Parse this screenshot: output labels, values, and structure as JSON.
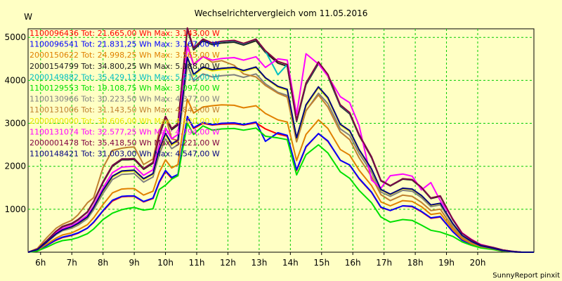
{
  "chart_data": {
    "type": "line",
    "title": "Wechselrichtervergleich vom 11.05.2016",
    "ylabel": "W",
    "xlabel": "",
    "footer": "SunnyReport pinxit",
    "x_range_hours": [
      5.6,
      21.8
    ],
    "ylim": [
      0,
      5200
    ],
    "x_ticks": [
      {
        "x": 6,
        "label": "6h"
      },
      {
        "x": 7,
        "label": "7h"
      },
      {
        "x": 8,
        "label": "8h"
      },
      {
        "x": 9,
        "label": "9h"
      },
      {
        "x": 10,
        "label": "10h"
      },
      {
        "x": 11,
        "label": "11h"
      },
      {
        "x": 12,
        "label": "12h"
      },
      {
        "x": 13,
        "label": "13h"
      },
      {
        "x": 14,
        "label": "14h"
      },
      {
        "x": 15,
        "label": "15h"
      },
      {
        "x": 16,
        "label": "16h"
      },
      {
        "x": 17,
        "label": "17h"
      },
      {
        "x": 18,
        "label": "18h"
      },
      {
        "x": 19,
        "label": "19h"
      },
      {
        "x": 20,
        "label": "20h"
      }
    ],
    "y_ticks": [
      1000,
      2000,
      3000,
      4000,
      5000
    ],
    "grid": true,
    "legend_position": "top-left",
    "x": [
      5.6,
      5.9,
      6.2,
      6.5,
      6.7,
      7.0,
      7.2,
      7.5,
      7.7,
      8.0,
      8.3,
      8.6,
      8.8,
      9.0,
      9.3,
      9.6,
      9.8,
      10.0,
      10.2,
      10.4,
      10.7,
      10.9,
      11.2,
      11.5,
      11.8,
      12.2,
      12.5,
      12.9,
      13.2,
      13.6,
      13.9,
      14.2,
      14.5,
      14.9,
      15.2,
      15.6,
      15.9,
      16.2,
      16.6,
      16.9,
      17.2,
      17.6,
      17.9,
      18.2,
      18.5,
      18.8,
      19.2,
      19.5,
      19.8,
      20.1,
      20.5,
      20.8,
      21.1,
      21.4,
      21.8
    ],
    "series": [
      {
        "name": "1100096436",
        "legend": "1100096436 Tot: 21.665,00 Wh Max: 3.143,00 W",
        "color": "#ff0000",
        "values": [
          0,
          40,
          160,
          280,
          340,
          390,
          440,
          560,
          690,
          960,
          1190,
          1290,
          1300,
          1300,
          1170,
          1250,
          1620,
          1880,
          1720,
          1780,
          3140,
          2880,
          3000,
          2960,
          2980,
          2990,
          2960,
          3010,
          2870,
          2750,
          2700,
          1900,
          2450,
          2760,
          2580,
          2140,
          2030,
          1710,
          1390,
          1040,
          970,
          1080,
          1060,
          940,
          790,
          820,
          480,
          280,
          180,
          110,
          70,
          30,
          10,
          0,
          0
        ]
      },
      {
        "name": "1100096541",
        "legend": "1100096541 Tot: 21.831,25 Wh Max: 3.167,00 W",
        "color": "#0000ff",
        "values": [
          0,
          40,
          160,
          290,
          350,
          400,
          450,
          560,
          700,
          970,
          1210,
          1300,
          1310,
          1310,
          1180,
          1260,
          1640,
          1900,
          1740,
          1810,
          3160,
          2900,
          3020,
          2970,
          3000,
          3010,
          2970,
          3030,
          2580,
          2780,
          2720,
          1920,
          2460,
          2760,
          2590,
          2140,
          2030,
          1720,
          1400,
          1050,
          970,
          1080,
          1070,
          950,
          800,
          830,
          480,
          280,
          180,
          110,
          70,
          30,
          10,
          0,
          0
        ]
      },
      {
        "name": "2000150622",
        "legend": "2000150622 Tot: 24.998,25 Wh Max: 3.565,00 W",
        "color": "#e08000",
        "values": [
          0,
          50,
          190,
          330,
          400,
          450,
          520,
          640,
          800,
          1110,
          1380,
          1470,
          1480,
          1480,
          1330,
          1420,
          1860,
          2150,
          1960,
          2040,
          3560,
          3240,
          3380,
          3410,
          3430,
          3420,
          3360,
          3410,
          3230,
          3080,
          3030,
          2130,
          2740,
          3080,
          2880,
          2390,
          2260,
          1910,
          1550,
          1170,
          1080,
          1200,
          1180,
          1060,
          880,
          910,
          530,
          310,
          200,
          120,
          80,
          30,
          10,
          0,
          0
        ]
      },
      {
        "name": "2000154799",
        "legend": "2000154799 Tot: 34.800,25 Wh Max: 5.188,00 W",
        "color": "#202020",
        "values": [
          0,
          70,
          270,
          480,
          590,
          660,
          750,
          930,
          1170,
          1620,
          2000,
          2150,
          2150,
          2160,
          1930,
          2070,
          2700,
          3130,
          2850,
          2960,
          5180,
          4710,
          4920,
          4830,
          4870,
          4890,
          4820,
          4920,
          4650,
          4400,
          4330,
          3040,
          3900,
          4390,
          4100,
          3400,
          3220,
          2720,
          2200,
          1660,
          1540,
          1700,
          1680,
          1500,
          1250,
          1300,
          760,
          440,
          290,
          170,
          110,
          50,
          20,
          0,
          0
        ]
      },
      {
        "name": "2000149882",
        "legend": "2000149882 Tot: 35.429,13 Wh Max: 5.212,00 W",
        "color": "#00c0c0",
        "values": [
          0,
          70,
          270,
          490,
          600,
          670,
          760,
          940,
          1180,
          1640,
          2020,
          2170,
          2170,
          2180,
          1950,
          2090,
          2720,
          3160,
          2880,
          2990,
          5210,
          4740,
          4960,
          4860,
          4900,
          4920,
          4850,
          4960,
          4680,
          4130,
          4370,
          3060,
          3930,
          4420,
          4130,
          3420,
          3240,
          2740,
          2220,
          1670,
          1550,
          1710,
          1690,
          1510,
          1260,
          1310,
          770,
          440,
          290,
          170,
          110,
          50,
          20,
          0,
          0
        ]
      },
      {
        "name": "1100129553",
        "legend": "1100129553 Tot: 19.108,75 Wh Max: 3.097,00 W",
        "color": "#00e000",
        "values": [
          0,
          30,
          120,
          220,
          270,
          300,
          340,
          430,
          540,
          760,
          910,
          990,
          1020,
          1040,
          980,
          1010,
          1460,
          1560,
          1700,
          1780,
          3000,
          2740,
          2940,
          2840,
          2870,
          2880,
          2840,
          2890,
          2700,
          2660,
          2620,
          1800,
          2270,
          2500,
          2310,
          1870,
          1720,
          1440,
          1150,
          820,
          700,
          760,
          740,
          630,
          510,
          470,
          370,
          240,
          160,
          100,
          60,
          20,
          10,
          0,
          0
        ]
      },
      {
        "name": "1100130966",
        "legend": "1100130966 Tot: 30.223,50 Wh Max: 4.377,00 W",
        "color": "#808080",
        "values": [
          0,
          60,
          230,
          410,
          500,
          560,
          630,
          780,
          990,
          1370,
          1690,
          1810,
          1820,
          1830,
          1630,
          1750,
          2280,
          2640,
          2410,
          2500,
          4370,
          3980,
          4150,
          4080,
          4110,
          4130,
          4070,
          4150,
          3920,
          3720,
          3650,
          2570,
          3290,
          3700,
          3460,
          2870,
          2720,
          2300,
          1860,
          1400,
          1300,
          1440,
          1420,
          1270,
          1060,
          1100,
          640,
          370,
          240,
          150,
          90,
          40,
          10,
          0,
          0
        ]
      },
      {
        "name": "1100131006",
        "legend": "1100131006 Tot: 31.143,50 Wh Max: 4.843,00 W",
        "color": "#c08030",
        "values": [
          0,
          90,
          340,
          560,
          650,
          740,
          870,
          1150,
          1270,
          1970,
          2370,
          2420,
          2440,
          2450,
          2040,
          2170,
          2820,
          3160,
          2640,
          2600,
          4840,
          4380,
          4560,
          4420,
          4460,
          4350,
          4150,
          4080,
          3880,
          3700,
          3610,
          2570,
          3300,
          3660,
          3380,
          2800,
          2620,
          2200,
          1760,
          1340,
          1200,
          1330,
          1300,
          1160,
          970,
          1000,
          580,
          340,
          220,
          130,
          80,
          30,
          10,
          0,
          0
        ]
      },
      {
        "name": "2000000000",
        "legend": "2000000000 Tot: 30.606,00 Wh Max: 4.520,00 W",
        "color": "#e8e800",
        "values": [
          0,
          60,
          240,
          430,
          520,
          580,
          660,
          810,
          1030,
          1420,
          1750,
          1870,
          1880,
          1890,
          1690,
          1810,
          2360,
          2730,
          2490,
          2580,
          4520,
          4110,
          4290,
          4220,
          4250,
          4270,
          4210,
          4290,
          4050,
          3840,
          3770,
          2650,
          3400,
          3830,
          3570,
          2960,
          2810,
          2370,
          1920,
          1450,
          1340,
          1480,
          1460,
          1310,
          1090,
          1130,
          660,
          380,
          250,
          150,
          90,
          40,
          10,
          0,
          0
        ]
      },
      {
        "name": "1100131074",
        "legend": "1100131074 Tot: 32.577,25 Wh Max: 4.794,00 W",
        "color": "#ff00ff",
        "values": [
          0,
          70,
          250,
          450,
          550,
          620,
          700,
          860,
          1080,
          1500,
          1850,
          1980,
          1990,
          2000,
          1790,
          1920,
          2500,
          2890,
          2640,
          2740,
          4790,
          4360,
          4550,
          4470,
          4510,
          4530,
          4470,
          4550,
          4300,
          4500,
          4470,
          3200,
          4620,
          4380,
          4100,
          3620,
          3480,
          2950,
          1680,
          1490,
          1780,
          1820,
          1770,
          1450,
          1620,
          1200,
          780,
          450,
          300,
          180,
          110,
          50,
          20,
          0,
          0
        ]
      },
      {
        "name": "2000001478",
        "legend": "2000001478 Tot: 35.418,50 Wh Max: 5.221,00 W",
        "color": "#800040",
        "values": [
          0,
          70,
          270,
          490,
          600,
          670,
          760,
          940,
          1180,
          1640,
          2020,
          2170,
          2170,
          2180,
          1950,
          2090,
          2720,
          3160,
          2880,
          2990,
          5220,
          4750,
          4960,
          4870,
          4910,
          4930,
          4860,
          4960,
          4690,
          4440,
          4370,
          3070,
          3940,
          4430,
          4140,
          3430,
          3250,
          2740,
          2220,
          1670,
          1550,
          1710,
          1690,
          1510,
          1260,
          1310,
          770,
          440,
          290,
          170,
          110,
          50,
          20,
          0,
          0
        ]
      },
      {
        "name": "1100148421",
        "legend": "1100148421 Tot: 31.003,00 Wh Max: 4.547,00 W",
        "color": "#000080",
        "values": [
          0,
          60,
          240,
          430,
          520,
          590,
          670,
          820,
          1040,
          1440,
          1770,
          1890,
          1900,
          1910,
          1710,
          1830,
          2390,
          2770,
          2520,
          2610,
          4540,
          4140,
          4310,
          4250,
          4280,
          4300,
          4230,
          4310,
          4060,
          3860,
          3790,
          2660,
          3430,
          3850,
          3600,
          2980,
          2830,
          2390,
          1940,
          1460,
          1350,
          1490,
          1470,
          1320,
          1100,
          1140,
          670,
          390,
          250,
          150,
          90,
          40,
          10,
          0,
          0
        ]
      }
    ]
  }
}
